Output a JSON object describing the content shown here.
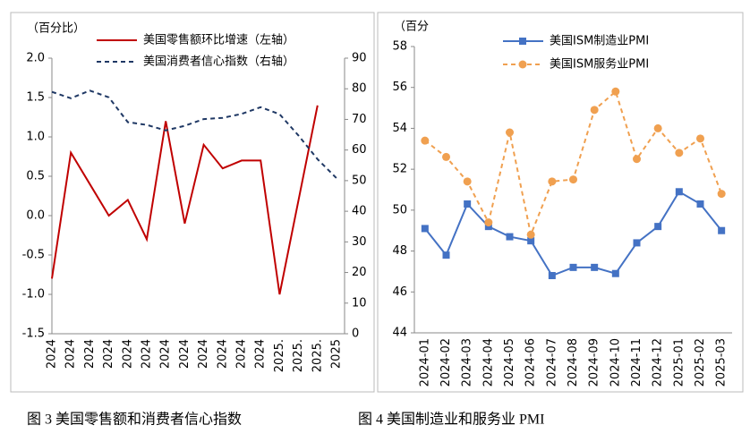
{
  "chart_data": [
    {
      "type": "line",
      "title": "图 3   美国零售额和消费者信心指数",
      "y_label": "（百分比）",
      "categories": [
        "2024",
        "2024",
        "2024",
        "2024",
        "2024",
        "2024",
        "2024",
        "2024",
        "2024",
        "2024",
        "2024",
        "2024",
        "2025.",
        "2025.",
        "2025.",
        "2025"
      ],
      "ylim": [
        -1.5,
        2.0
      ],
      "yticks": [
        -1.5,
        {
          "value": -1.0,
          "label": "-1.0"
        },
        -0.5,
        {
          "value": 0.0,
          "label": "0.0"
        },
        0.5,
        {
          "value": 1.0,
          "label": "1.0"
        },
        1.5,
        {
          "value": 2.0,
          "label": "2.0"
        }
      ],
      "y2lim": [
        0,
        90
      ],
      "y2ticks": [
        0,
        10,
        20,
        30,
        40,
        50,
        60,
        70,
        80,
        90
      ],
      "series": [
        {
          "name": "美国零售额环比增速（左轴）",
          "color": "#c00000",
          "linestyle": "solid",
          "values": [
            -0.8,
            0.8,
            0.4,
            0.0,
            0.2,
            -0.3,
            1.2,
            -0.1,
            0.9,
            0.6,
            0.7,
            0.7,
            -1.0,
            0.2,
            1.4,
            null
          ]
        },
        {
          "name": "美国消费者信心指数（右轴）",
          "color": "#1f3864",
          "linestyle": "dashed",
          "axis": "y2",
          "values": [
            79.0,
            76.9,
            79.4,
            77.2,
            69.1,
            68.2,
            66.4,
            67.9,
            70.1,
            70.5,
            71.8,
            74.0,
            71.7,
            64.7,
            57.0,
            50.8
          ]
        }
      ]
    },
    {
      "type": "line",
      "title": "图 4   美国制造业和服务业 PMI",
      "y_label": "（百分",
      "categories": [
        "2024-01",
        "2024-02",
        "2024-03",
        "2024-04",
        "2024-05",
        "2024-06",
        "2024-07",
        "2024-08",
        "2024-09",
        "2024-10",
        "2024-11",
        "2024-12",
        "2025-01",
        "2025-02",
        "2025-03"
      ],
      "ylim": [
        44,
        58
      ],
      "yticks": [
        44,
        46,
        48,
        50,
        52,
        54,
        56,
        58
      ],
      "series": [
        {
          "name": "美国ISM制造业PMI",
          "color": "#4472c4",
          "linestyle": "solid",
          "marker": "square",
          "values": [
            49.1,
            47.8,
            50.3,
            49.2,
            48.7,
            48.5,
            46.8,
            47.2,
            47.2,
            46.9,
            48.4,
            49.2,
            50.9,
            50.3,
            49.0
          ]
        },
        {
          "name": "美国ISM服务业PMI",
          "color": "#f0a050",
          "linestyle": "dashed",
          "marker": "circle",
          "values": [
            53.4,
            52.6,
            51.4,
            49.4,
            53.8,
            48.8,
            51.4,
            51.5,
            54.9,
            55.8,
            52.5,
            54.0,
            52.8,
            53.5,
            50.8
          ]
        }
      ]
    }
  ]
}
